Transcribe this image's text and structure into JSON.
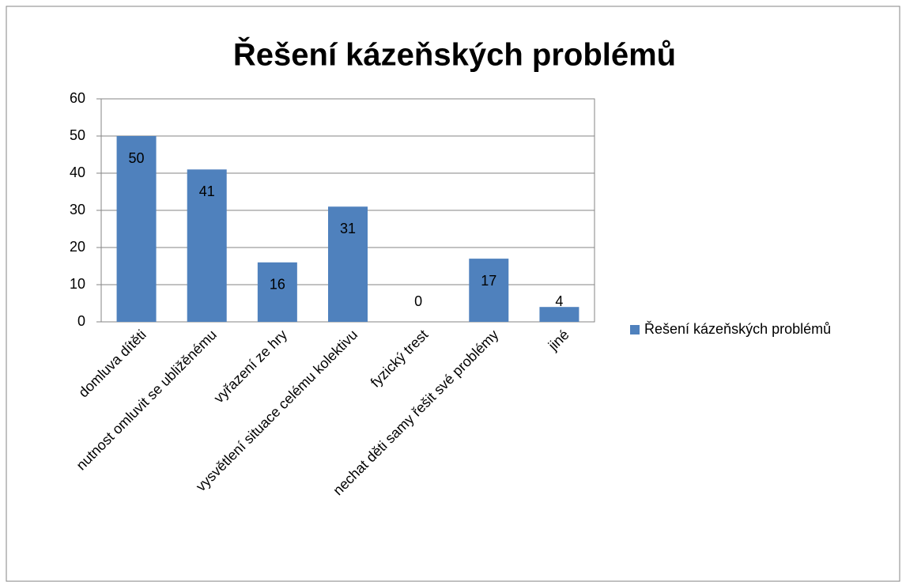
{
  "chart_data": {
    "type": "bar",
    "title": "Řešení kázeňských problémů",
    "categories": [
      "domluva dítěti",
      "nutnost omluvit se ubližěnému",
      "vyřazení ze hry",
      "vysvětlení situace celému kolektivu",
      "fyzický trest",
      "nechat děti samy řešit své problémy",
      "jiné"
    ],
    "series": [
      {
        "name": "Řešení kázeňských problémů",
        "color": "#4f81bd",
        "values": [
          50,
          41,
          16,
          31,
          0,
          17,
          4
        ]
      }
    ],
    "ylim": [
      0,
      60
    ],
    "yticks": [
      0,
      10,
      20,
      30,
      40,
      50,
      60
    ],
    "grid": true,
    "legend": "right"
  }
}
